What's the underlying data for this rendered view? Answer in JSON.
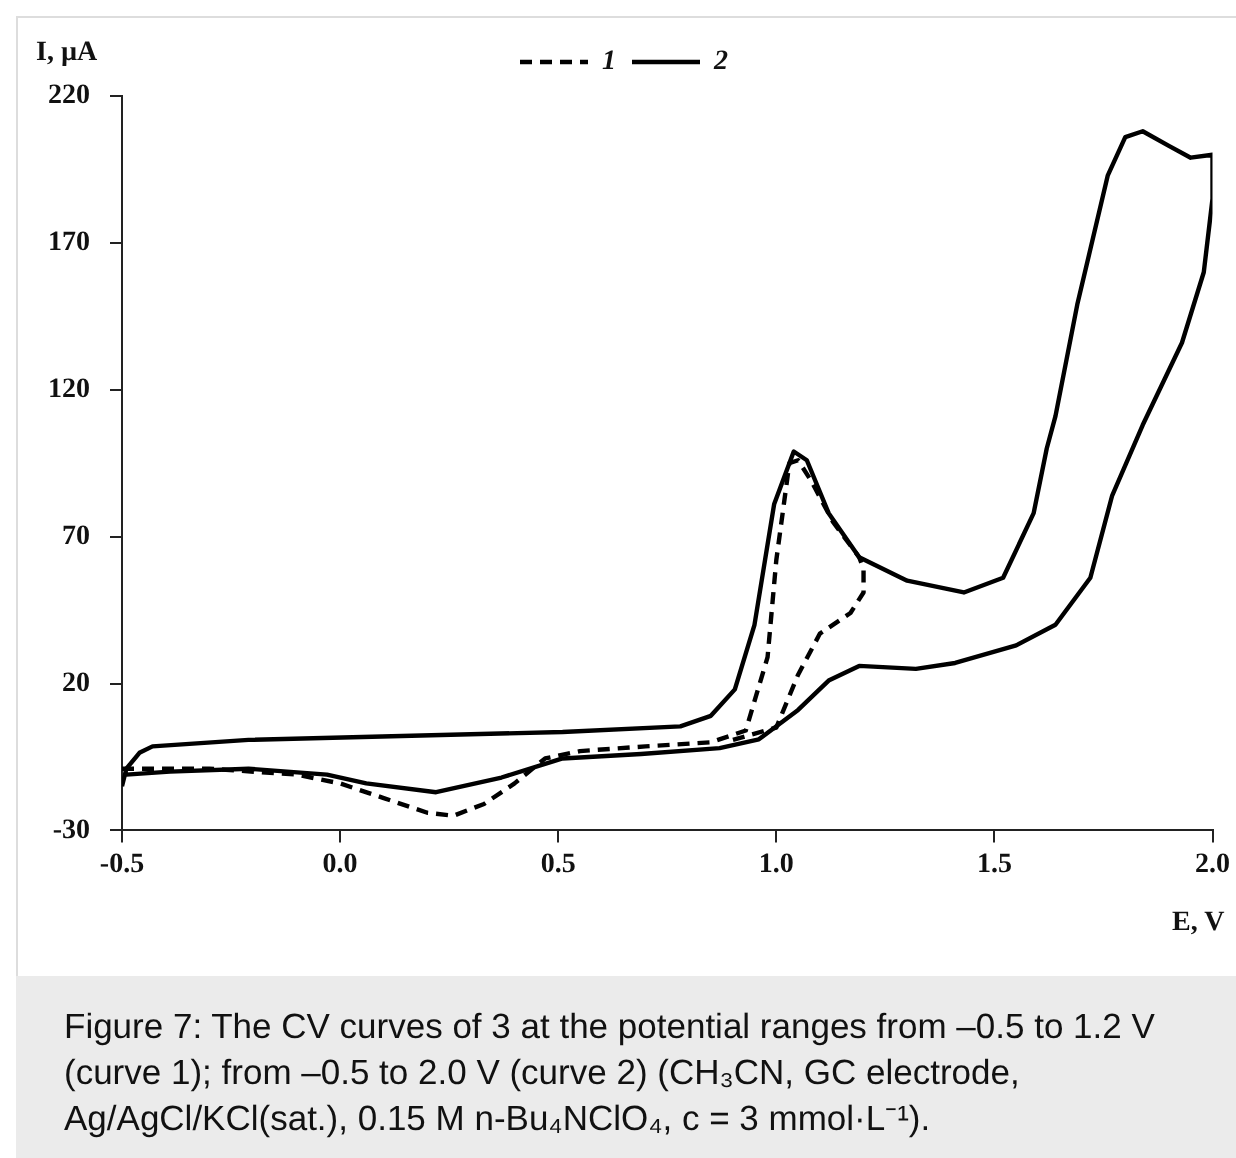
{
  "chart_data": {
    "type": "line",
    "xlabel": "E, V",
    "ylabel": "I, µA",
    "xlim": [
      -0.5,
      2.0
    ],
    "ylim": [
      -30,
      220
    ],
    "xticks": [
      -0.5,
      {
        "value": 0,
        "label": "0.0"
      },
      0.5,
      {
        "value": 1,
        "label": "1.0"
      },
      1.5,
      {
        "value": 2,
        "label": "2.0"
      }
    ],
    "yticks": [
      -30,
      20,
      70,
      120,
      170,
      220
    ],
    "grid": false,
    "legend": "top",
    "marker": "none",
    "series": [
      {
        "name": "1",
        "color": "#000000",
        "line_style": "dashed",
        "x": [
          -0.5,
          -0.3,
          -0.1,
          0.0,
          0.1,
          0.2,
          0.26,
          0.33,
          0.4,
          0.47,
          0.55,
          0.7,
          0.85,
          0.93,
          0.98,
          1.0,
          1.03,
          1.05,
          1.08,
          1.13,
          1.19,
          1.2,
          1.2,
          1.17,
          1.1,
          1.05,
          1.0,
          0.9
        ],
        "values": [
          -9,
          -9,
          -11,
          -14,
          -19,
          -24,
          -25,
          -21,
          -14,
          -5.5,
          -3,
          -1.4,
          0,
          4,
          29,
          62,
          95,
          96,
          89,
          75,
          63,
          59,
          51,
          44,
          37,
          23,
          5,
          0.8
        ]
      },
      {
        "name": "2",
        "color": "#000000",
        "line_style": "solid",
        "x": [
          -0.5,
          -0.49,
          -0.46,
          -0.43,
          -0.21,
          0.51,
          0.78,
          0.85,
          0.905,
          0.95,
          0.995,
          1.04,
          1.07,
          1.12,
          1.19,
          1.3,
          1.43,
          1.52,
          1.59,
          1.62,
          1.64,
          1.69,
          1.76,
          1.8,
          1.84,
          1.9,
          1.95,
          2.0,
          2.0,
          1.98,
          1.93,
          1.84,
          1.77,
          1.72,
          1.64,
          1.55,
          1.41,
          1.32,
          1.19,
          1.12,
          1.05,
          0.96,
          0.87,
          0.69,
          0.51,
          0.37,
          0.22,
          0.06,
          -0.03,
          -0.21,
          -0.39,
          -0.49
        ],
        "values": [
          -15,
          -9,
          -3.6,
          -1.4,
          0.8,
          3.5,
          5.4,
          9,
          18,
          40,
          81,
          99,
          96,
          78,
          63,
          55,
          51,
          56,
          78,
          100,
          111,
          149,
          193,
          206,
          208,
          203,
          199,
          200,
          185,
          160,
          136,
          108,
          84,
          56,
          40,
          33,
          27,
          25,
          26,
          21,
          11,
          1,
          -2,
          -4,
          -5.5,
          -12,
          -17,
          -14,
          -11,
          -9,
          -10,
          -11
        ]
      }
    ],
    "annotations": [
      "Figure 7: The CV curves of 3 at the potential ranges from –0.5 to 1.2 V (curve 1); from –0.5 to 2.0 V (curve 2) (CH₃CN, GC electrode, Ag/AgCl/KCl(sat.), 0.15 M n-Bu₄NClO₄, c = 3 mmol·L⁻¹)."
    ]
  }
}
